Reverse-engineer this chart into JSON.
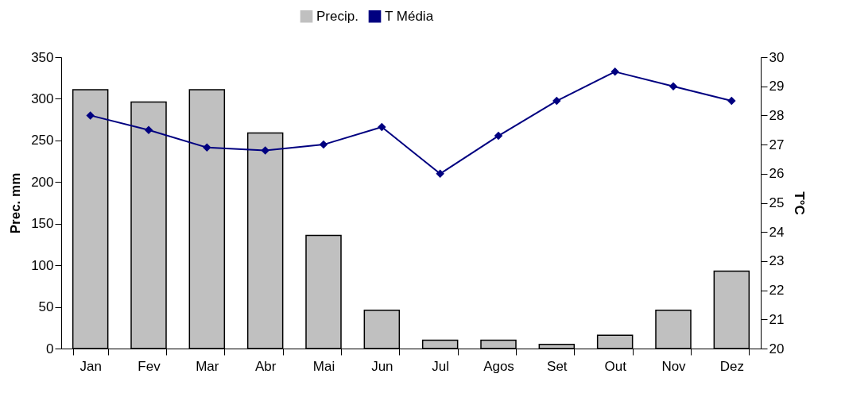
{
  "chart_data": {
    "type": "bar",
    "categories": [
      "Jan",
      "Fev",
      "Mar",
      "Abr",
      "Mai",
      "Jun",
      "Jul",
      "Agos",
      "Set",
      "Out",
      "Nov",
      "Dez"
    ],
    "series": [
      {
        "name": "Precip.",
        "color": "#c0c0c0",
        "values": [
          311,
          296,
          311,
          259,
          136,
          46,
          10,
          10,
          5,
          16,
          46,
          93
        ]
      },
      {
        "name": "T Média",
        "type": "line",
        "axis": "y2",
        "color": "#000080",
        "values": [
          28,
          27.5,
          26.9,
          26.8,
          27,
          27.6,
          26,
          27.3,
          28.5,
          29.5,
          29,
          28.5
        ]
      }
    ],
    "ylabel": "Prec. mm",
    "y2label": "T°C",
    "ylim": [
      0,
      350
    ],
    "yticks": [
      0,
      50,
      100,
      150,
      200,
      250,
      300,
      350
    ],
    "y2lim": [
      20,
      30
    ],
    "y2ticks": [
      20,
      21,
      22,
      23,
      24,
      25,
      26,
      27,
      28,
      29,
      30
    ],
    "marker": "diamond",
    "legend": "top",
    "grid": false
  }
}
